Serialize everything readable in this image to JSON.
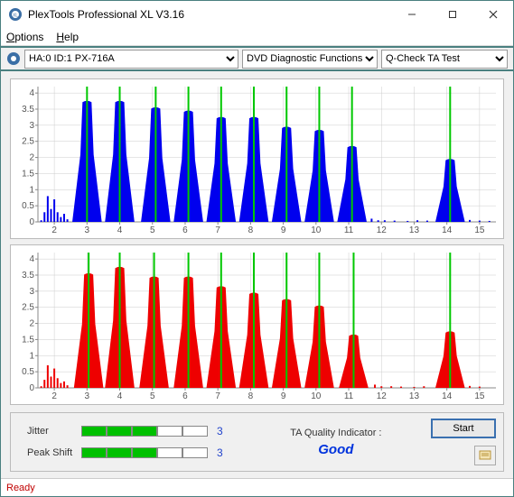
{
  "window": {
    "title": "PlexTools Professional XL V3.16"
  },
  "menu": {
    "options": "Options",
    "help": "Help"
  },
  "toolbar": {
    "drive": "HA:0 ID:1  PX-716A",
    "mode": "DVD Diagnostic Functions",
    "test": "Q-Check TA Test"
  },
  "chart1": {
    "type": "area-peaks",
    "color": "#0000ee",
    "peak_marker_color": "#00c800",
    "background_color": "#ffffff",
    "grid_color": "#cccccc",
    "axis_color": "#555555",
    "xlim": [
      1.5,
      15.5
    ],
    "ylim": [
      0,
      4.2
    ],
    "xticks": [
      2,
      3,
      4,
      5,
      6,
      7,
      8,
      9,
      10,
      11,
      12,
      13,
      14,
      15
    ],
    "yticks": [
      0,
      0.5,
      1,
      1.5,
      2,
      2.5,
      3,
      3.5,
      4
    ],
    "peaks": [
      {
        "x": 3.0,
        "h": 3.8
      },
      {
        "x": 4.0,
        "h": 3.8
      },
      {
        "x": 5.1,
        "h": 3.6
      },
      {
        "x": 6.1,
        "h": 3.5
      },
      {
        "x": 7.1,
        "h": 3.3
      },
      {
        "x": 8.1,
        "h": 3.3
      },
      {
        "x": 9.1,
        "h": 3.0
      },
      {
        "x": 10.1,
        "h": 2.9
      },
      {
        "x": 11.1,
        "h": 2.4
      },
      {
        "x": 14.1,
        "h": 2.0
      }
    ],
    "halfwidth": 0.45,
    "prelude": [
      {
        "x": 1.6,
        "h": 0.05
      },
      {
        "x": 1.7,
        "h": 0.3
      },
      {
        "x": 1.8,
        "h": 0.8
      },
      {
        "x": 1.9,
        "h": 0.4
      },
      {
        "x": 2.0,
        "h": 0.7
      },
      {
        "x": 2.1,
        "h": 0.3
      },
      {
        "x": 2.2,
        "h": 0.15
      },
      {
        "x": 2.3,
        "h": 0.25
      },
      {
        "x": 2.4,
        "h": 0.08
      }
    ],
    "tail": [
      {
        "x": 11.7,
        "h": 0.1
      },
      {
        "x": 11.9,
        "h": 0.05
      },
      {
        "x": 12.1,
        "h": 0.05
      },
      {
        "x": 12.4,
        "h": 0.04
      },
      {
        "x": 12.8,
        "h": 0.03
      },
      {
        "x": 13.1,
        "h": 0.05
      },
      {
        "x": 13.4,
        "h": 0.04
      },
      {
        "x": 14.7,
        "h": 0.06
      },
      {
        "x": 15.0,
        "h": 0.04
      },
      {
        "x": 15.3,
        "h": 0.03
      }
    ]
  },
  "chart2": {
    "type": "area-peaks",
    "color": "#ee0000",
    "peak_marker_color": "#00c800",
    "background_color": "#ffffff",
    "grid_color": "#cccccc",
    "axis_color": "#555555",
    "xlim": [
      1.5,
      15.5
    ],
    "ylim": [
      0,
      4.2
    ],
    "xticks": [
      2,
      3,
      4,
      5,
      6,
      7,
      8,
      9,
      10,
      11,
      12,
      13,
      14,
      15
    ],
    "yticks": [
      0,
      0.5,
      1,
      1.5,
      2,
      2.5,
      3,
      3.5,
      4
    ],
    "peaks": [
      {
        "x": 3.05,
        "h": 3.6
      },
      {
        "x": 4.0,
        "h": 3.8
      },
      {
        "x": 5.05,
        "h": 3.5
      },
      {
        "x": 6.1,
        "h": 3.5
      },
      {
        "x": 7.1,
        "h": 3.2
      },
      {
        "x": 8.1,
        "h": 3.0
      },
      {
        "x": 9.1,
        "h": 2.8
      },
      {
        "x": 10.1,
        "h": 2.6
      },
      {
        "x": 11.15,
        "h": 1.7
      },
      {
        "x": 14.1,
        "h": 1.8
      }
    ],
    "halfwidth": 0.45,
    "prelude": [
      {
        "x": 1.6,
        "h": 0.05
      },
      {
        "x": 1.7,
        "h": 0.25
      },
      {
        "x": 1.8,
        "h": 0.7
      },
      {
        "x": 1.9,
        "h": 0.35
      },
      {
        "x": 2.0,
        "h": 0.6
      },
      {
        "x": 2.1,
        "h": 0.3
      },
      {
        "x": 2.2,
        "h": 0.15
      },
      {
        "x": 2.3,
        "h": 0.2
      },
      {
        "x": 2.4,
        "h": 0.08
      }
    ],
    "tail": [
      {
        "x": 11.8,
        "h": 0.1
      },
      {
        "x": 12.0,
        "h": 0.05
      },
      {
        "x": 12.3,
        "h": 0.05
      },
      {
        "x": 12.6,
        "h": 0.04
      },
      {
        "x": 13.0,
        "h": 0.03
      },
      {
        "x": 13.3,
        "h": 0.05
      },
      {
        "x": 14.7,
        "h": 0.06
      },
      {
        "x": 15.0,
        "h": 0.04
      }
    ]
  },
  "meters": {
    "jitter": {
      "label": "Jitter",
      "level": 3,
      "max": 5,
      "value": "3"
    },
    "peakshift": {
      "label": "Peak Shift",
      "level": 3,
      "max": 5,
      "value": "3"
    }
  },
  "quality": {
    "label": "TA Quality Indicator :",
    "value": "Good",
    "color": "#0022cc"
  },
  "buttons": {
    "start": "Start"
  },
  "status": {
    "text": "Ready",
    "color": "#c00000"
  }
}
